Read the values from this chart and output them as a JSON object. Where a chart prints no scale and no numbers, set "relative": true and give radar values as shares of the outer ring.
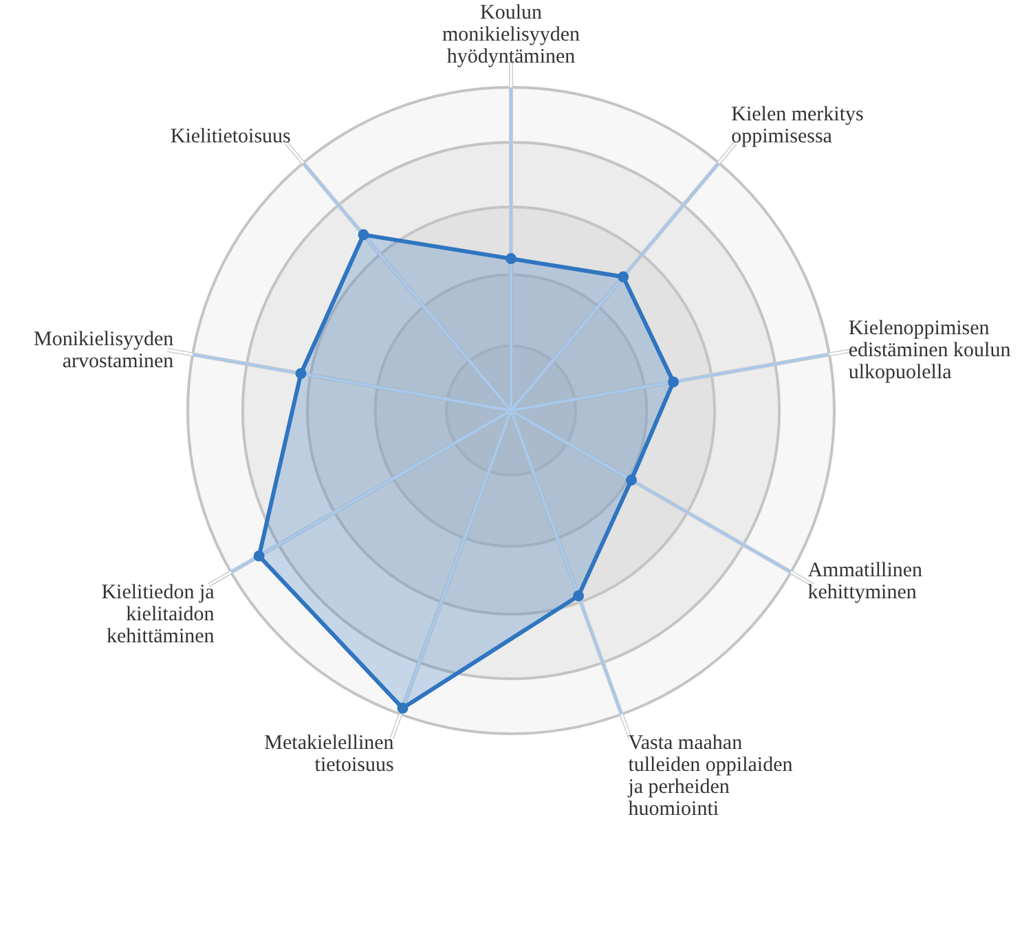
{
  "chart_data": {
    "type": "radar",
    "relative": true,
    "marker": "circle",
    "categories": [
      "Koulun monikielisyyden hyödyntäminen",
      "Kielen merkitys oppimisessa",
      "Kielenoppimisen edistäminen koulun ulkopuolella",
      "Ammatillinen kehittyminen",
      "Vasta maahan tulleiden oppilaiden ja perheiden huomiointi",
      "Metakielellinen tietoisuus",
      "Kielitiedon ja kielitaidon kehittäminen",
      "Monikielisyyden arvostaminen",
      "Kielitietoisuus"
    ],
    "series": [
      {
        "color": "#2f75c0",
        "values": [
          0.47,
          0.54,
          0.51,
          0.43,
          0.61,
          0.98,
          0.9,
          0.66,
          0.71
        ]
      }
    ]
  }
}
